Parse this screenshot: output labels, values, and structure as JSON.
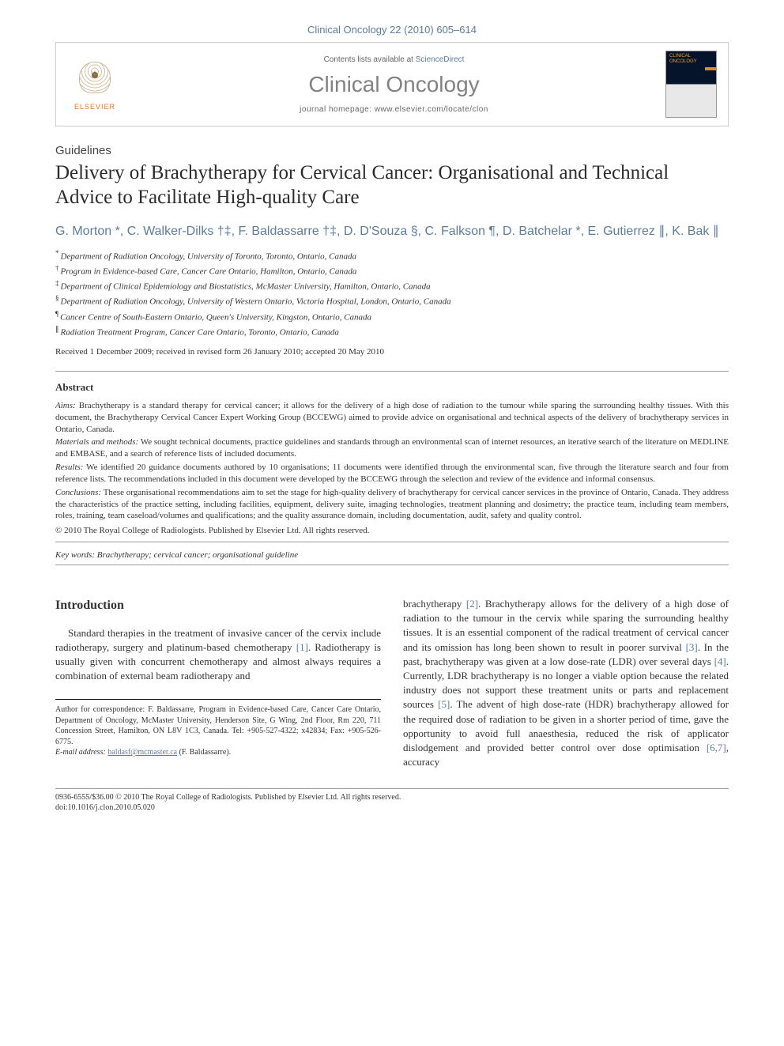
{
  "journal_ref": "Clinical Oncology 22 (2010) 605–614",
  "header": {
    "contents_prefix": "Contents lists available at ",
    "contents_link": "ScienceDirect",
    "journal_name": "Clinical Oncology",
    "homepage_prefix": "journal homepage: ",
    "homepage_url": "www.elsevier.com/locate/clon",
    "publisher": "ELSEVIER",
    "cover_label": "CLINICAL ONCOLOGY"
  },
  "article_type": "Guidelines",
  "title": "Delivery of Brachytherapy for Cervical Cancer: Organisational and Technical Advice to Facilitate High-quality Care",
  "authors_line": "G. Morton *, C. Walker-Dilks †‡, F. Baldassarre †‡, D. D'Souza §, C. Falkson ¶, D. Batchelar *, E. Gutierrez ∥, K. Bak ∥",
  "affiliations": [
    {
      "sym": "*",
      "text": "Department of Radiation Oncology, University of Toronto, Toronto, Ontario, Canada"
    },
    {
      "sym": "†",
      "text": "Program in Evidence-based Care, Cancer Care Ontario, Hamilton, Ontario, Canada"
    },
    {
      "sym": "‡",
      "text": "Department of Clinical Epidemiology and Biostatistics, McMaster University, Hamilton, Ontario, Canada"
    },
    {
      "sym": "§",
      "text": "Department of Radiation Oncology, University of Western Ontario, Victoria Hospital, London, Ontario, Canada"
    },
    {
      "sym": "¶",
      "text": "Cancer Centre of South-Eastern Ontario, Queen's University, Kingston, Ontario, Canada"
    },
    {
      "sym": "∥",
      "text": "Radiation Treatment Program, Cancer Care Ontario, Toronto, Ontario, Canada"
    }
  ],
  "dates": "Received 1 December 2009; received in revised form 26 January 2010; accepted 20 May 2010",
  "abstract": {
    "heading": "Abstract",
    "aims_label": "Aims:",
    "aims": " Brachytherapy is a standard therapy for cervical cancer; it allows for the delivery of a high dose of radiation to the tumour while sparing the surrounding healthy tissues. With this document, the Brachytherapy Cervical Cancer Expert Working Group (BCCEWG) aimed to provide advice on organisational and technical aspects of the delivery of brachytherapy services in Ontario, Canada.",
    "mm_label": "Materials and methods:",
    "mm": " We sought technical documents, practice guidelines and standards through an environmental scan of internet resources, an iterative search of the literature on MEDLINE and EMBASE, and a search of reference lists of included documents.",
    "results_label": "Results:",
    "results": " We identified 20 guidance documents authored by 10 organisations; 11 documents were identified through the environmental scan, five through the literature search and four from reference lists. The recommendations included in this document were developed by the BCCEWG through the selection and review of the evidence and informal consensus.",
    "conclusions_label": "Conclusions:",
    "conclusions": " These organisational recommendations aim to set the stage for high-quality delivery of brachytherapy for cervical cancer services in the province of Ontario, Canada. They address the characteristics of the practice setting, including facilities, equipment, delivery suite, imaging technologies, treatment planning and dosimetry; the practice team, including team members, roles, training, team caseload/volumes and qualifications; and the quality assurance domain, including documentation, audit, safety and quality control.",
    "copyright": "© 2010 The Royal College of Radiologists. Published by Elsevier Ltd. All rights reserved."
  },
  "keywords_label": "Key words:",
  "keywords": " Brachytherapy; cervical cancer; organisational guideline",
  "intro": {
    "heading": "Introduction",
    "col1": "Standard therapies in the treatment of invasive cancer of the cervix include radiotherapy, surgery and platinum-based chemotherapy [1]. Radiotherapy is usually given with concurrent chemotherapy and almost always requires a combination of external beam radiotherapy and",
    "col2": "brachytherapy [2]. Brachytherapy allows for the delivery of a high dose of radiation to the tumour in the cervix while sparing the surrounding healthy tissues. It is an essential component of the radical treatment of cervical cancer and its omission has long been shown to result in poorer survival [3]. In the past, brachytherapy was given at a low dose-rate (LDR) over several days [4]. Currently, LDR brachytherapy is no longer a viable option because the related industry does not support these treatment units or parts and replacement sources [5]. The advent of high dose-rate (HDR) brachytherapy allowed for the required dose of radiation to be given in a shorter period of time, gave the opportunity to avoid full anaesthesia, reduced the risk of applicator dislodgement and provided better control over dose optimisation [6,7], accuracy"
  },
  "correspondence": {
    "label": "Author for correspondence: ",
    "text": "F. Baldassarre, Program in Evidence-based Care, Cancer Care Ontario, Department of Oncology, McMaster University, Henderson Site, G Wing, 2nd Floor, Rm 220, 711 Concession Street, Hamilton, ON L8V 1C3, Canada. Tel: +905-527-4322; x42834; Fax: +905-526-6775.",
    "email_label": "E-mail address: ",
    "email": "baldasf@mcmaster.ca",
    "email_name": " (F. Baldassarre)."
  },
  "footer": {
    "line1": "0936-6555/$36.00 © 2010 The Royal College of Radiologists. Published by Elsevier Ltd. All rights reserved.",
    "line2": "doi:10.1016/j.clon.2010.05.020"
  },
  "colors": {
    "link": "#5b7ca3",
    "grey_title": "#828282",
    "text": "#333333",
    "rule": "#999999",
    "elsevier_orange": "#e47b2f"
  }
}
